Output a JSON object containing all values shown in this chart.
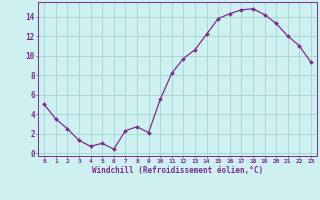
{
  "x": [
    0,
    1,
    2,
    3,
    4,
    5,
    6,
    7,
    8,
    9,
    10,
    11,
    12,
    13,
    14,
    15,
    16,
    17,
    18,
    19,
    20,
    21,
    22,
    23
  ],
  "y": [
    5.0,
    3.5,
    2.5,
    1.3,
    0.7,
    1.0,
    0.4,
    2.3,
    2.7,
    2.1,
    5.5,
    8.2,
    9.7,
    10.6,
    12.2,
    13.8,
    14.3,
    14.7,
    14.8,
    14.2,
    13.3,
    12.0,
    11.0,
    9.3
  ],
  "line_color": "#7b2d8b",
  "marker": "D",
  "marker_size": 2.0,
  "bg_color": "#cff0f0",
  "grid_color": "#a8d8d8",
  "xlabel": "Windchill (Refroidissement éolien,°C)",
  "xlabel_color": "#7b2d8b",
  "tick_color": "#7b2d8b",
  "spine_color": "#7b2d8b",
  "ylim": [
    -0.3,
    15.5
  ],
  "xlim": [
    -0.5,
    23.5
  ],
  "yticks": [
    0,
    2,
    4,
    6,
    8,
    10,
    12,
    14
  ],
  "xticks": [
    0,
    1,
    2,
    3,
    4,
    5,
    6,
    7,
    8,
    9,
    10,
    11,
    12,
    13,
    14,
    15,
    16,
    17,
    18,
    19,
    20,
    21,
    22,
    23
  ],
  "xtick_fontsize": 4.5,
  "ytick_fontsize": 5.5,
  "xlabel_fontsize": 5.5
}
